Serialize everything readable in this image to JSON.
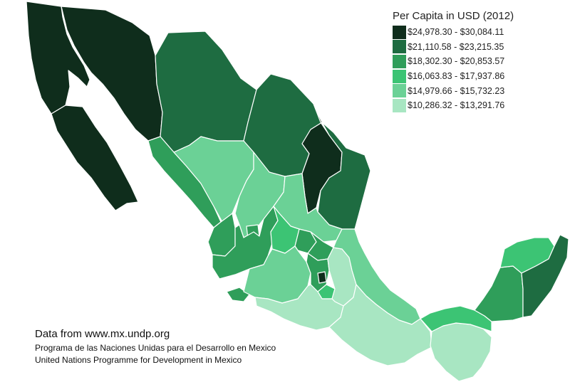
{
  "legend": {
    "title": "Per Capita in USD (2012)",
    "classes": [
      {
        "label": "$24,978.30 - $30,084.11",
        "color": "#0f2d1c"
      },
      {
        "label": "$21,110.58 - $23,215.35",
        "color": "#1e6c41"
      },
      {
        "label": "$18,302.30 - $20,853.57",
        "color": "#2f9e5a"
      },
      {
        "label": "$16,063.83 - $17,937.86",
        "color": "#3cc474"
      },
      {
        "label": "$14,979.66 - $15,732.23",
        "color": "#6bd196"
      },
      {
        "label": "$10,286.32 - $13,291.76",
        "color": "#a8e6c2"
      }
    ]
  },
  "states": [
    {
      "id": "baja-california",
      "class": 0
    },
    {
      "id": "baja-california-sur",
      "class": 0
    },
    {
      "id": "sonora",
      "class": 0
    },
    {
      "id": "chihuahua",
      "class": 1
    },
    {
      "id": "coahuila",
      "class": 1
    },
    {
      "id": "nuevo-leon",
      "class": 0
    },
    {
      "id": "tamaulipas",
      "class": 1
    },
    {
      "id": "sinaloa",
      "class": 2
    },
    {
      "id": "durango",
      "class": 4
    },
    {
      "id": "zacatecas",
      "class": 4
    },
    {
      "id": "san-luis-potosi",
      "class": 4
    },
    {
      "id": "nayarit",
      "class": 2
    },
    {
      "id": "aguascalientes",
      "class": 2
    },
    {
      "id": "jalisco",
      "class": 2
    },
    {
      "id": "guanajuato",
      "class": 3
    },
    {
      "id": "queretaro",
      "class": 2
    },
    {
      "id": "hidalgo",
      "class": 2
    },
    {
      "id": "colima",
      "class": 2
    },
    {
      "id": "michoacan",
      "class": 4
    },
    {
      "id": "estado-de-mexico",
      "class": 2
    },
    {
      "id": "ciudad-de-mexico",
      "class": 0
    },
    {
      "id": "morelos",
      "class": 3
    },
    {
      "id": "tlaxcala",
      "class": 4
    },
    {
      "id": "puebla",
      "class": 5
    },
    {
      "id": "veracruz",
      "class": 4
    },
    {
      "id": "guerrero",
      "class": 5
    },
    {
      "id": "oaxaca",
      "class": 5
    },
    {
      "id": "chiapas",
      "class": 5
    },
    {
      "id": "tabasco",
      "class": 3
    },
    {
      "id": "campeche",
      "class": 2
    },
    {
      "id": "yucatan",
      "class": 3
    },
    {
      "id": "quintana-roo",
      "class": 1
    }
  ],
  "credits": {
    "main": "Data from www.mx.undp.org",
    "line1": "Programa de las Naciones Unidas para el Desarrollo en Mexico",
    "line2": "United Nations Programme for Development in Mexico"
  }
}
